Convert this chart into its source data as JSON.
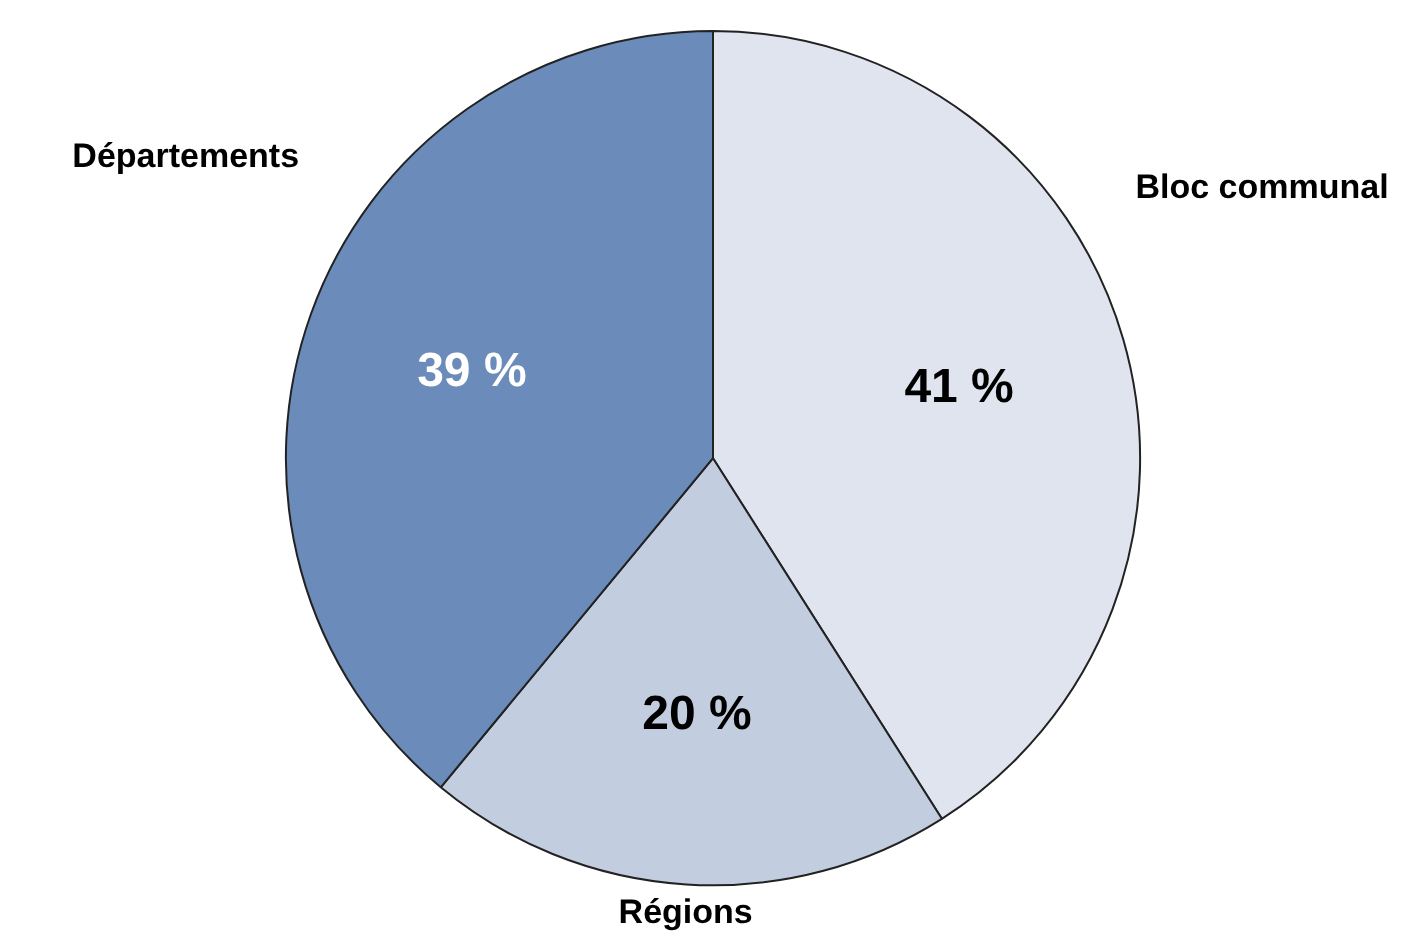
{
  "chart_data": {
    "type": "pie",
    "categories": [
      "Bloc communal",
      "Régions",
      "Départements"
    ],
    "values": [
      41,
      20,
      39
    ],
    "colors": [
      "#dfe4ef",
      "#c3cde0",
      "#6b8cba"
    ],
    "value_labels": [
      "41 %",
      "20 %",
      "39 %"
    ]
  }
}
